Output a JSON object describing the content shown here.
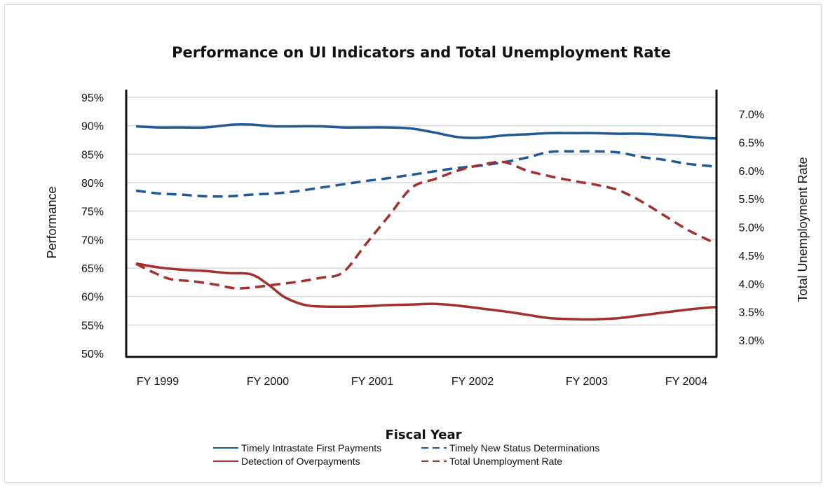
{
  "chart_data": {
    "type": "line",
    "title": "Performance on UI Indicators and Total Unemployment Rate",
    "xlabel": "Fiscal Year",
    "ylabel": "Performance",
    "y2label": "Total Unemployment Rate",
    "categories": [
      "FY 1999",
      "FY 2000",
      "FY 2001",
      "FY 2002",
      "FY 2003",
      "FY 2004"
    ],
    "x_range": [
      1999.0,
      2004.05
    ],
    "ylim": [
      50,
      95
    ],
    "y2lim": [
      3.0,
      7.0
    ],
    "yticks": [
      "50%",
      "55%",
      "60%",
      "65%",
      "70%",
      "75%",
      "80%",
      "85%",
      "90%",
      "95%"
    ],
    "y2ticks": [
      "3.0%",
      "3.5%",
      "4.0%",
      "4.5%",
      "5.0%",
      "5.5%",
      "6.0%",
      "6.5%",
      "7.0%"
    ],
    "grid": true,
    "legend_position": "bottom",
    "colors": {
      "blue": "#1f5a96",
      "red": "#a3302b",
      "grid": "#d9d9d9",
      "axis": "#111111"
    },
    "series": [
      {
        "name": "Timely Intrastate First Payments",
        "axis": "left",
        "color": "#1f5a96",
        "dash": "solid",
        "x": [
          1999.0,
          1999.2,
          1999.4,
          1999.6,
          1999.85,
          2000.0,
          2000.2,
          2000.4,
          2000.6,
          2000.8,
          2001.0,
          2001.2,
          2001.4,
          2001.6,
          2001.8,
          2002.0,
          2002.2,
          2002.4,
          2002.6,
          2002.85,
          2003.0,
          2003.2,
          2003.4,
          2003.6,
          2003.8,
          2004.0,
          2004.05
        ],
        "values": [
          89.9,
          89.7,
          89.7,
          89.7,
          90.2,
          90.2,
          89.9,
          89.9,
          89.9,
          89.7,
          89.7,
          89.7,
          89.5,
          88.8,
          88.0,
          87.9,
          88.3,
          88.5,
          88.7,
          88.7,
          88.7,
          88.6,
          88.6,
          88.4,
          88.1,
          87.8,
          87.8
        ]
      },
      {
        "name": "Timely New Status Determinations",
        "axis": "left",
        "color": "#1f5a96",
        "dash": "dashed",
        "x": [
          1999.0,
          1999.2,
          1999.4,
          1999.6,
          1999.8,
          2000.0,
          2000.2,
          2000.4,
          2000.6,
          2000.8,
          2001.0,
          2001.2,
          2001.4,
          2001.6,
          2001.8,
          2002.0,
          2002.2,
          2002.4,
          2002.6,
          2002.85,
          2003.0,
          2003.2,
          2003.4,
          2003.6,
          2003.8,
          2004.0,
          2004.05
        ],
        "values": [
          78.6,
          78.1,
          77.9,
          77.6,
          77.6,
          77.9,
          78.1,
          78.5,
          79.1,
          79.7,
          80.3,
          80.8,
          81.4,
          82.0,
          82.6,
          83.0,
          83.6,
          84.4,
          85.4,
          85.5,
          85.5,
          85.3,
          84.5,
          84.0,
          83.3,
          82.9,
          82.6
        ]
      },
      {
        "name": "Detection of Overpayments",
        "axis": "left",
        "color": "#a3302b",
        "dash": "solid",
        "x": [
          1999.0,
          1999.2,
          1999.4,
          1999.6,
          1999.8,
          2000.0,
          2000.15,
          2000.3,
          2000.5,
          2000.8,
          2001.0,
          2001.2,
          2001.4,
          2001.6,
          2001.8,
          2002.0,
          2002.2,
          2002.4,
          2002.6,
          2002.85,
          2003.0,
          2003.2,
          2003.4,
          2003.6,
          2003.8,
          2004.0,
          2004.05
        ],
        "values": [
          65.8,
          65.1,
          64.7,
          64.5,
          64.1,
          63.9,
          62.1,
          59.8,
          58.4,
          58.2,
          58.3,
          58.5,
          58.6,
          58.7,
          58.4,
          57.9,
          57.4,
          56.8,
          56.2,
          56.0,
          56.0,
          56.2,
          56.7,
          57.2,
          57.7,
          58.1,
          58.1
        ]
      },
      {
        "name": "Total Unemployment Rate",
        "axis": "right",
        "color": "#a3302b",
        "dash": "dashed",
        "x": [
          1999.0,
          1999.15,
          1999.3,
          1999.5,
          1999.7,
          1999.85,
          2000.0,
          2000.2,
          2000.4,
          2000.6,
          2000.8,
          2001.0,
          2001.2,
          2001.4,
          2001.6,
          2001.8,
          2002.0,
          2002.2,
          2002.4,
          2002.6,
          2002.85,
          2003.0,
          2003.2,
          2003.4,
          2003.6,
          2003.8,
          2004.0,
          2004.05
        ],
        "values": [
          4.35,
          4.2,
          4.08,
          4.04,
          3.98,
          3.92,
          3.93,
          3.98,
          4.03,
          4.1,
          4.2,
          4.7,
          5.2,
          5.7,
          5.85,
          6.0,
          6.1,
          6.15,
          6.0,
          5.9,
          5.8,
          5.75,
          5.65,
          5.45,
          5.2,
          4.95,
          4.75,
          4.7
        ]
      }
    ]
  }
}
